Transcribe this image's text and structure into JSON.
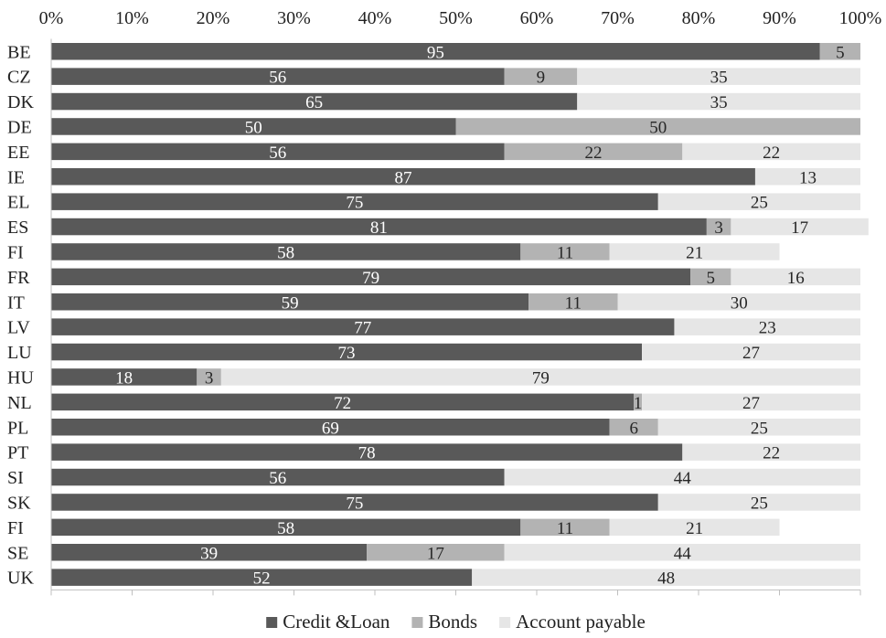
{
  "chart_data": {
    "type": "bar",
    "orientation": "horizontal",
    "stacked": true,
    "percent": true,
    "x_ticks": [
      "0%",
      "10%",
      "20%",
      "30%",
      "40%",
      "50%",
      "60%",
      "70%",
      "80%",
      "90%",
      "100%"
    ],
    "xlim": [
      0,
      100
    ],
    "grid": false,
    "legend_position": "bottom",
    "categories": [
      "BE",
      "CZ",
      "DK",
      "DE",
      "EE",
      "IE",
      "EL",
      "ES",
      "FI",
      "FR",
      "IT",
      "LV",
      "LU",
      "HU",
      "NL",
      "PL",
      "PT",
      "SI",
      "SK",
      "FI",
      "SE",
      "UK"
    ],
    "series": [
      {
        "name": "Credit &Loan",
        "color": "#595959",
        "values": [
          95,
          56,
          65,
          50,
          56,
          87,
          75,
          81,
          58,
          79,
          59,
          77,
          73,
          18,
          72,
          69,
          78,
          56,
          75,
          58,
          39,
          52
        ]
      },
      {
        "name": "Bonds",
        "color": "#b3b3b3",
        "values": [
          5,
          9,
          null,
          50,
          22,
          null,
          null,
          3,
          11,
          5,
          11,
          null,
          null,
          3,
          1,
          6,
          null,
          null,
          null,
          11,
          17,
          null
        ]
      },
      {
        "name": "Account payable",
        "color": "#e6e6e6",
        "values": [
          null,
          35,
          35,
          null,
          22,
          13,
          25,
          17,
          21,
          16,
          30,
          23,
          27,
          79,
          27,
          25,
          22,
          44,
          25,
          21,
          44,
          48
        ]
      }
    ]
  }
}
